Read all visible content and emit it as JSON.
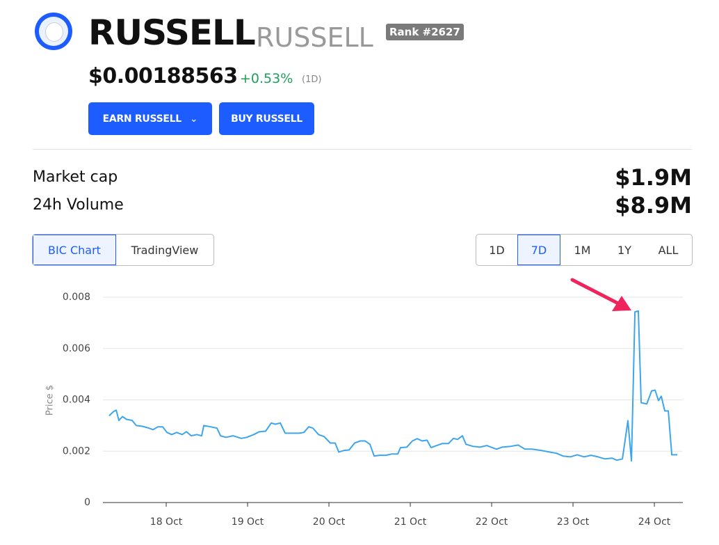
{
  "header": {
    "name": "RUSSELL",
    "symbol": "RUSSELL",
    "rank": "Rank #2627",
    "price": "$0.00188563",
    "change": "+0.53%",
    "period": "(1D)"
  },
  "buttons": [
    "EARN RUSSELL",
    "BUY RUSSELL"
  ],
  "stats": [
    {
      "label": "Market cap",
      "value": "$1.9M"
    },
    {
      "label": "24h Volume",
      "value": "$8.9M"
    }
  ],
  "chart_tabs": [
    "BIC Chart",
    "TradingView"
  ],
  "ranges": [
    "1D",
    "7D",
    "1M",
    "1Y",
    "ALL"
  ],
  "chart_data": {
    "type": "line",
    "ylabel": "Price $",
    "color": "#3da5ee",
    "grid": true,
    "x": [
      17.299,
      17.35,
      17.385,
      17.419,
      17.462,
      17.513,
      17.581,
      17.632,
      17.709,
      17.786,
      17.838,
      17.897,
      17.957,
      18.009,
      18.068,
      18.128,
      18.197,
      18.248,
      18.308,
      18.376,
      18.436,
      18.462,
      18.547,
      18.624,
      18.667,
      18.735,
      18.821,
      18.923,
      18.991,
      19.077,
      19.145,
      19.222,
      19.291,
      19.342,
      19.402,
      19.462,
      19.547,
      19.632,
      19.692,
      19.752,
      19.803,
      19.872,
      19.94,
      20.017,
      20.077,
      20.12,
      20.188,
      20.248,
      20.316,
      20.385,
      20.444,
      20.504,
      20.556,
      20.624,
      20.701,
      20.769,
      20.846,
      20.88,
      20.957,
      21.026,
      21.085,
      21.145,
      21.205,
      21.256,
      21.325,
      21.393,
      21.47,
      21.53,
      21.581,
      21.641,
      21.684,
      21.769,
      21.855,
      21.94,
      21.991,
      22.06,
      22.128,
      22.239,
      22.325,
      22.41,
      22.496,
      22.607,
      22.709,
      22.795,
      22.88,
      22.966,
      23.051,
      23.137,
      23.222,
      23.308,
      23.393,
      23.479,
      23.538,
      23.607,
      23.675,
      23.718,
      23.761,
      23.803,
      23.838,
      23.906,
      23.966,
      24.009,
      24.051,
      24.085,
      24.128,
      24.171,
      24.214,
      24.282
    ],
    "values": [
      0.00338,
      0.00354,
      0.0036,
      0.0032,
      0.00335,
      0.00324,
      0.0032,
      0.003,
      0.00297,
      0.0029,
      0.00284,
      0.00295,
      0.00295,
      0.00273,
      0.00265,
      0.00273,
      0.00265,
      0.00276,
      0.0026,
      0.00265,
      0.0026,
      0.003,
      0.00295,
      0.0029,
      0.0026,
      0.00254,
      0.0026,
      0.0025,
      0.00254,
      0.00265,
      0.00276,
      0.00278,
      0.0031,
      0.00305,
      0.0031,
      0.0027,
      0.0027,
      0.0027,
      0.00273,
      0.00295,
      0.0029,
      0.00265,
      0.00257,
      0.00232,
      0.00232,
      0.00197,
      0.00203,
      0.00205,
      0.00232,
      0.0024,
      0.0024,
      0.00227,
      0.00181,
      0.00184,
      0.00184,
      0.00189,
      0.00189,
      0.00214,
      0.00216,
      0.0024,
      0.00249,
      0.0024,
      0.00243,
      0.00214,
      0.00222,
      0.0023,
      0.0023,
      0.0025,
      0.00246,
      0.0026,
      0.00227,
      0.00219,
      0.00216,
      0.00222,
      0.00216,
      0.00208,
      0.00216,
      0.00219,
      0.00224,
      0.00208,
      0.00208,
      0.00203,
      0.00197,
      0.00192,
      0.00181,
      0.00178,
      0.00186,
      0.00178,
      0.00184,
      0.00178,
      0.0017,
      0.00173,
      0.00165,
      0.0017,
      0.00319,
      0.00162,
      0.00743,
      0.00746,
      0.00389,
      0.00384,
      0.00435,
      0.00438,
      0.00397,
      0.00414,
      0.00357,
      0.00357,
      0.00186,
      0.00186
    ],
    "xlim": [
      17.222,
      24.35
    ],
    "ylim": [
      0,
      0.008
    ],
    "xticks": [
      {
        "value": 18,
        "label": "18 Oct"
      },
      {
        "value": 19,
        "label": "19 Oct"
      },
      {
        "value": 20,
        "label": "20 Oct"
      },
      {
        "value": 21,
        "label": "21 Oct"
      },
      {
        "value": 22,
        "label": "22 Oct"
      },
      {
        "value": 23,
        "label": "23 Oct"
      },
      {
        "value": 24,
        "label": "24 Oct"
      }
    ],
    "yticks": [
      0,
      0.002,
      0.004,
      0.006,
      0.008
    ]
  }
}
